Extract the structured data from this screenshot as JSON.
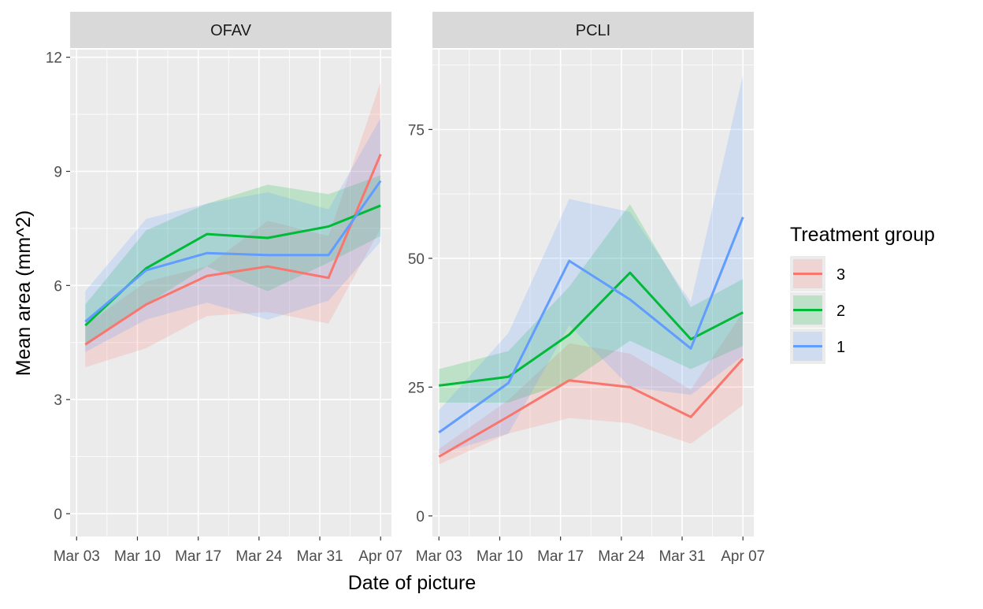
{
  "chart_data": {
    "type": "line",
    "xlabel": "Date of picture",
    "ylabel": "Mean area (mm^2)",
    "legend": {
      "title": "Treatment group",
      "position": "right",
      "entries": [
        "3",
        "2",
        "1"
      ]
    },
    "x_ticks": [
      "Mar 03",
      "Mar 10",
      "Mar 17",
      "Mar 24",
      "Mar 31",
      "Apr 07"
    ],
    "colors": {
      "3": "#F8766D",
      "2": "#00BA38",
      "1": "#619CFF"
    },
    "grid": true,
    "panels": [
      {
        "title": "OFAV",
        "ylim": [
          -0.6,
          12.2
        ],
        "yticks": [
          0,
          3,
          6,
          9,
          12
        ],
        "series": [
          {
            "name": "3",
            "points": [
              {
                "date": "2018-03-04",
                "y": 4.45,
                "lo": 3.85,
                "hi": 4.95
              },
              {
                "date": "2018-03-11",
                "y": 5.5,
                "lo": 4.35,
                "hi": 6.1
              },
              {
                "date": "2018-03-18",
                "y": 6.25,
                "lo": 5.2,
                "hi": 6.5
              },
              {
                "date": "2018-03-25",
                "y": 6.5,
                "lo": 5.3,
                "hi": 7.7
              },
              {
                "date": "2018-04-01",
                "y": 6.2,
                "lo": 5.0,
                "hi": 7.3
              },
              {
                "date": "2018-04-07",
                "y": 9.45,
                "lo": 7.5,
                "hi": 11.35
              }
            ]
          },
          {
            "name": "2",
            "points": [
              {
                "date": "2018-03-04",
                "y": 4.95,
                "lo": 4.4,
                "hi": 5.5
              },
              {
                "date": "2018-03-11",
                "y": 6.45,
                "lo": 5.5,
                "hi": 7.45
              },
              {
                "date": "2018-03-18",
                "y": 7.35,
                "lo": 6.5,
                "hi": 8.15
              },
              {
                "date": "2018-03-25",
                "y": 7.25,
                "lo": 5.85,
                "hi": 8.65
              },
              {
                "date": "2018-04-01",
                "y": 7.55,
                "lo": 6.6,
                "hi": 8.4
              },
              {
                "date": "2018-04-07",
                "y": 8.1,
                "lo": 7.3,
                "hi": 8.9
              }
            ]
          },
          {
            "name": "1",
            "points": [
              {
                "date": "2018-03-04",
                "y": 5.05,
                "lo": 4.25,
                "hi": 5.85
              },
              {
                "date": "2018-03-11",
                "y": 6.4,
                "lo": 5.1,
                "hi": 7.75
              },
              {
                "date": "2018-03-18",
                "y": 6.85,
                "lo": 5.55,
                "hi": 8.15
              },
              {
                "date": "2018-03-25",
                "y": 6.8,
                "lo": 5.1,
                "hi": 8.45
              },
              {
                "date": "2018-04-01",
                "y": 6.8,
                "lo": 5.6,
                "hi": 8.0
              },
              {
                "date": "2018-04-07",
                "y": 8.75,
                "lo": 7.15,
                "hi": 10.4
              }
            ]
          }
        ]
      },
      {
        "title": "PCLI",
        "ylim": [
          -4,
          90.5
        ],
        "yticks": [
          0,
          25,
          50,
          75
        ],
        "series": [
          {
            "name": "3",
            "points": [
              {
                "date": "2018-03-03",
                "y": 11.5,
                "lo": 10.0,
                "hi": 13.0
              },
              {
                "date": "2018-03-11",
                "y": 19.3,
                "lo": 16.0,
                "hi": 22.5
              },
              {
                "date": "2018-03-18",
                "y": 26.3,
                "lo": 19.0,
                "hi": 33.5
              },
              {
                "date": "2018-03-25",
                "y": 25.0,
                "lo": 18.0,
                "hi": 31.5
              },
              {
                "date": "2018-04-01",
                "y": 19.2,
                "lo": 14.0,
                "hi": 24.5
              },
              {
                "date": "2018-04-07",
                "y": 30.5,
                "lo": 21.5,
                "hi": 39.5
              }
            ]
          },
          {
            "name": "2",
            "points": [
              {
                "date": "2018-03-03",
                "y": 25.3,
                "lo": 22.0,
                "hi": 28.5
              },
              {
                "date": "2018-03-11",
                "y": 27.0,
                "lo": 22.0,
                "hi": 32.0
              },
              {
                "date": "2018-03-18",
                "y": 35.2,
                "lo": 26.0,
                "hi": 44.5
              },
              {
                "date": "2018-03-25",
                "y": 47.2,
                "lo": 34.0,
                "hi": 60.5
              },
              {
                "date": "2018-04-01",
                "y": 34.3,
                "lo": 28.5,
                "hi": 40.5
              },
              {
                "date": "2018-04-07",
                "y": 39.5,
                "lo": 33.0,
                "hi": 46.0
              }
            ]
          },
          {
            "name": "1",
            "points": [
              {
                "date": "2018-03-03",
                "y": 16.2,
                "lo": 12.0,
                "hi": 20.5
              },
              {
                "date": "2018-03-11",
                "y": 25.8,
                "lo": 16.0,
                "hi": 35.5
              },
              {
                "date": "2018-03-18",
                "y": 49.5,
                "lo": 37.0,
                "hi": 61.5
              },
              {
                "date": "2018-03-25",
                "y": 42.0,
                "lo": 25.0,
                "hi": 59.0
              },
              {
                "date": "2018-04-01",
                "y": 32.5,
                "lo": 23.5,
                "hi": 41.5
              },
              {
                "date": "2018-04-07",
                "y": 58.0,
                "lo": 31.0,
                "hi": 85.5
              }
            ]
          }
        ]
      }
    ]
  }
}
